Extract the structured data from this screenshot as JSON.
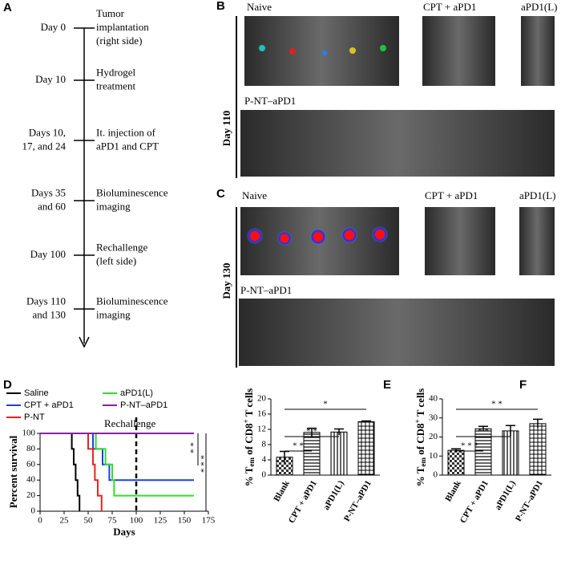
{
  "timeline": {
    "label": "A",
    "events": [
      {
        "time": [
          "Day 0"
        ],
        "event": [
          "Tumor",
          "implantation",
          "(right side)"
        ]
      },
      {
        "time": [
          "Day 10"
        ],
        "event": [
          "Hydrogel",
          "treatment"
        ]
      },
      {
        "time": [
          "Days 10,",
          "17, and 24"
        ],
        "event": [
          "It. injection  of",
          "aPD1 and CPT"
        ]
      },
      {
        "time": [
          "Days 35",
          "and 60"
        ],
        "event": [
          "Bioluminescence",
          "imaging"
        ]
      },
      {
        "time": [
          "Day 100"
        ],
        "event": [
          "Rechallenge",
          "(left side)"
        ]
      },
      {
        "time": [
          "Days 110",
          "and 130"
        ],
        "event": [
          "Bioluminescence",
          "imaging"
        ]
      }
    ]
  },
  "imaging": [
    {
      "label": "B",
      "day": "Day 110",
      "groups": [
        "Naive",
        "CPT + aPD1",
        "aPD1(L)",
        "P-NT–aPD1"
      ]
    },
    {
      "label": "C",
      "day": "Day 130",
      "groups": [
        "Naive",
        "CPT + aPD1",
        "aPD1(L)",
        "P-NT–aPD1"
      ]
    }
  ],
  "chart_data": [
    {
      "type": "survival",
      "label": "D",
      "xlabel": "Days",
      "ylabel": "Percent survival",
      "xlim": [
        0,
        175
      ],
      "xticks": [
        0,
        25,
        50,
        75,
        100,
        125,
        150,
        175
      ],
      "ylim": [
        0,
        100
      ],
      "yticks": [
        0,
        20,
        40,
        60,
        80,
        100
      ],
      "series": [
        {
          "name": "Saline",
          "color": "#000000",
          "x": [
            0,
            33,
            35,
            37,
            39,
            41
          ],
          "values": [
            100,
            80,
            60,
            40,
            20,
            0
          ]
        },
        {
          "name": "CPT + aPD1",
          "color": "#1f3fe0",
          "x": [
            0,
            55,
            65,
            72,
            160
          ],
          "values": [
            100,
            80,
            60,
            40,
            40
          ]
        },
        {
          "name": "P-NT",
          "color": "#e8231f",
          "x": [
            0,
            50,
            55,
            57,
            60,
            64
          ],
          "values": [
            100,
            80,
            60,
            40,
            20,
            0
          ]
        },
        {
          "name": "aPD1(L)",
          "color": "#2ee02a",
          "x": [
            0,
            58,
            68,
            75,
            77,
            160
          ],
          "values": [
            100,
            80,
            60,
            40,
            20,
            20
          ]
        },
        {
          "name": "P-NT–aPD1",
          "color": "#8a1fa0",
          "x": [
            0,
            160
          ],
          "values": [
            100,
            100
          ]
        }
      ],
      "annotation": "Rechallenge",
      "annotation_x": 100,
      "significance": [
        "* *",
        "* * *"
      ]
    },
    {
      "type": "bar",
      "label": "E",
      "ylabel": {
        "pre": "% T",
        "sub": "em",
        "mid": " of CD8",
        "sup": "+",
        "post": " T cells"
      },
      "categories": [
        "Blank",
        "CPT + aPD1",
        "aPD1(L)",
        "P-NT–aPD1"
      ],
      "values": [
        4.7,
        11.2,
        11.3,
        14.0
      ],
      "errors": [
        1.5,
        1.1,
        0.8,
        0.2
      ],
      "patterns": [
        "checker",
        "hlines",
        "vlines",
        "grid"
      ],
      "ylim": [
        0,
        20
      ],
      "yticks": [
        0,
        4,
        8,
        12,
        16,
        20
      ],
      "significance": [
        "* *",
        "* *",
        "*"
      ]
    },
    {
      "type": "bar",
      "label": "F",
      "ylabel": {
        "pre": "% T",
        "sub": "em",
        "mid": " of CD8",
        "sup": "+",
        "post": " T cells"
      },
      "categories": [
        "Blank",
        "CPT + aPD1",
        "aPD1(L)",
        "P-NT–aPD1"
      ],
      "values": [
        13,
        24.3,
        23.2,
        27
      ],
      "errors": [
        0.8,
        1.3,
        2.8,
        2.3
      ],
      "patterns": [
        "checker",
        "hlines",
        "vlines",
        "grid"
      ],
      "ylim": [
        0,
        40
      ],
      "yticks": [
        0,
        10,
        20,
        30,
        40
      ],
      "significance": [
        "* * *",
        "* *",
        "* *"
      ]
    }
  ]
}
